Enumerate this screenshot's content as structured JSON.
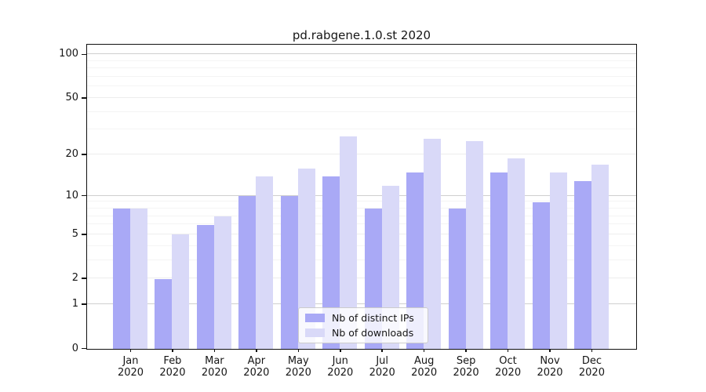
{
  "chart_data": {
    "type": "bar",
    "title": "pd.rabgene.1.0.st 2020",
    "categories": [
      "Jan",
      "Feb",
      "Mar",
      "Apr",
      "May",
      "Jun",
      "Jul",
      "Aug",
      "Sep",
      "Oct",
      "Nov",
      "Dec"
    ],
    "year_label": "2020",
    "series": [
      {
        "name": "Nb of distinct IPs",
        "color": "#a9a9f6",
        "values": [
          8,
          2,
          6,
          10,
          10,
          14,
          8,
          15,
          8,
          15,
          9,
          13
        ]
      },
      {
        "name": "Nb of downloads",
        "color": "#d9d9f8",
        "values": [
          8,
          5,
          7,
          14,
          16,
          27,
          12,
          26,
          25,
          19,
          15,
          17
        ]
      }
    ],
    "xlabel": "",
    "ylabel": "",
    "yscale": "log10(value+1)",
    "ylim": [
      0,
      116
    ],
    "y_ticks": [
      0,
      1,
      2,
      5,
      10,
      20,
      50,
      100
    ],
    "gridlines": {
      "major": [
        1,
        10,
        100
      ],
      "mid": [
        2,
        5,
        20,
        50
      ],
      "minor": [
        3,
        4,
        6,
        7,
        8,
        9,
        30,
        40,
        60,
        70,
        80,
        90
      ]
    },
    "grid": true,
    "legend_position": "lower center"
  }
}
